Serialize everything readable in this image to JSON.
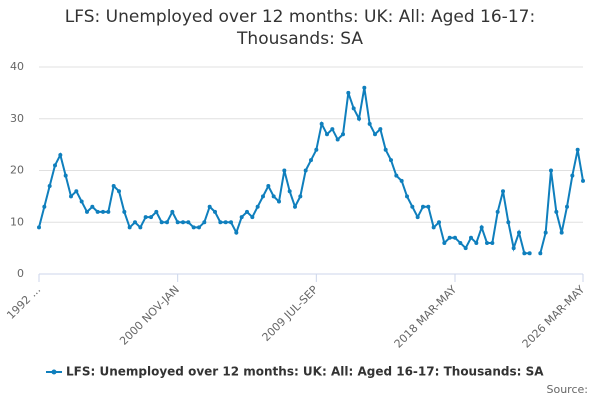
{
  "chart_data": {
    "type": "line",
    "title": "LFS: Unemployed over 12 months: UK: All: Aged 16-17: Thousands: SA",
    "source": "Source:",
    "categories": [
      "1992 ...",
      null,
      null,
      null,
      null,
      null,
      null,
      null,
      null,
      null,
      null,
      null,
      null,
      null,
      null,
      null,
      null,
      null,
      null,
      null,
      null,
      null,
      null,
      null,
      null,
      null,
      "2000 NOV-JAN",
      null,
      null,
      null,
      null,
      null,
      null,
      null,
      null,
      null,
      null,
      null,
      null,
      null,
      null,
      null,
      null,
      null,
      null,
      null,
      null,
      null,
      null,
      null,
      null,
      null,
      "2009 JUL-SEP",
      null,
      null,
      null,
      null,
      null,
      null,
      null,
      null,
      null,
      null,
      null,
      null,
      null,
      null,
      null,
      null,
      null,
      null,
      null,
      null,
      null,
      null,
      null,
      null,
      null,
      "2018 MAR-MAY",
      null,
      null,
      null,
      null,
      null,
      null,
      null,
      null,
      null,
      null,
      null,
      null,
      null,
      null,
      null,
      null,
      null,
      null,
      null,
      null,
      null,
      null,
      null,
      "2026 MAR-MAY"
    ],
    "series": [
      {
        "name": "LFS: Unemployed over 12 months: UK: All: Aged 16-17: Thousands: SA",
        "color": "#0f7fbd",
        "values": [
          9,
          13,
          17,
          21,
          23,
          19,
          15,
          16,
          14,
          12,
          13,
          12,
          12,
          12,
          17,
          16,
          12,
          9,
          10,
          9,
          11,
          11,
          12,
          10,
          10,
          12,
          10,
          10,
          10,
          9,
          9,
          10,
          13,
          12,
          10,
          10,
          10,
          8,
          11,
          12,
          11,
          13,
          15,
          17,
          15,
          14,
          20,
          16,
          13,
          15,
          20,
          22,
          24,
          29,
          27,
          28,
          26,
          27,
          35,
          32,
          30,
          36,
          29,
          27,
          28,
          24,
          22,
          19,
          18,
          15,
          13,
          11,
          13,
          13,
          9,
          10,
          6,
          7,
          7,
          6,
          5,
          7,
          6,
          9,
          6,
          6,
          12,
          16,
          10,
          5,
          8,
          4,
          4,
          null,
          4,
          8,
          20,
          12,
          8,
          13,
          19,
          24,
          18
        ]
      }
    ],
    "ylim": [
      0,
      40
    ],
    "yticks": [
      0,
      10,
      20,
      30,
      40
    ],
    "grid": true
  }
}
